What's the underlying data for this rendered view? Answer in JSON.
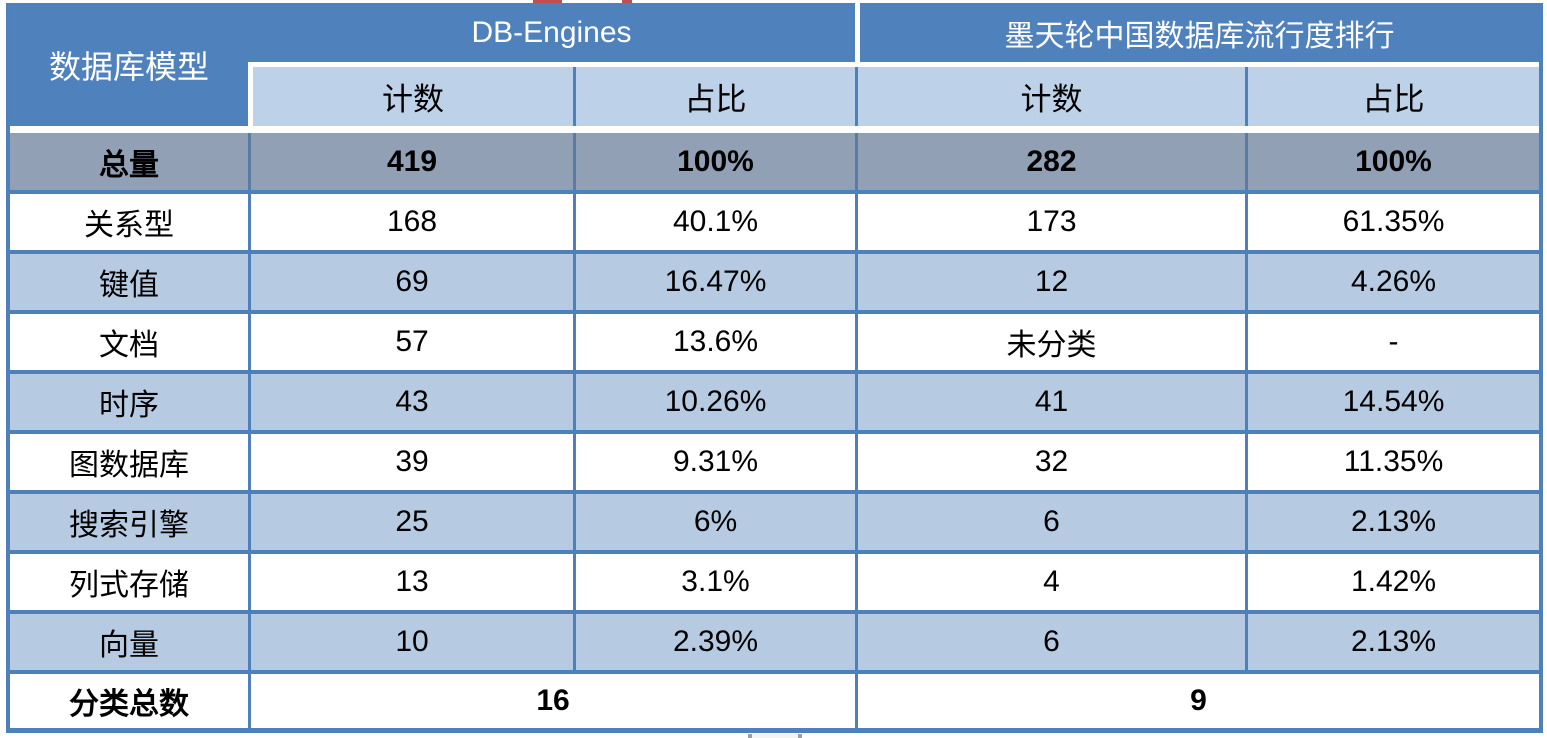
{
  "table": {
    "corner_header": "数据库模型",
    "group_headers": [
      {
        "label": "DB-Engines"
      },
      {
        "label": "墨天轮中国数据库流行度排行"
      }
    ],
    "sub_headers": [
      "计数",
      "占比",
      "计数",
      "占比"
    ],
    "total_row": {
      "label": "总量",
      "db_count": "419",
      "db_pct": "100%",
      "mt_count": "282",
      "mt_pct": "100%"
    },
    "rows": [
      {
        "label": "关系型",
        "db_count": "168",
        "db_pct": "40.1%",
        "mt_count": "173",
        "mt_pct": "61.35%"
      },
      {
        "label": "键值",
        "db_count": "69",
        "db_pct": "16.47%",
        "mt_count": "12",
        "mt_pct": "4.26%"
      },
      {
        "label": "文档",
        "db_count": "57",
        "db_pct": "13.6%",
        "mt_count": "未分类",
        "mt_pct": "-"
      },
      {
        "label": "时序",
        "db_count": "43",
        "db_pct": "10.26%",
        "mt_count": "41",
        "mt_pct": "14.54%"
      },
      {
        "label": "图数据库",
        "db_count": "39",
        "db_pct": "9.31%",
        "mt_count": "32",
        "mt_pct": "11.35%"
      },
      {
        "label": "搜索引擎",
        "db_count": "25",
        "db_pct": "6%",
        "mt_count": "6",
        "mt_pct": "2.13%"
      },
      {
        "label": "列式存储",
        "db_count": "13",
        "db_pct": "3.1%",
        "mt_count": "4",
        "mt_pct": "1.42%"
      },
      {
        "label": "向量",
        "db_count": "10",
        "db_pct": "2.39%",
        "mt_count": "6",
        "mt_pct": "2.13%"
      }
    ],
    "summary_row": {
      "label": "分类总数",
      "db_total": "16",
      "mt_total": "9"
    }
  },
  "colors": {
    "header_blue": "#4F81BD",
    "subheader_blue": "#BDD1E8",
    "band_blue": "#B6CBE2",
    "band_white": "#FFFFFF",
    "total_row_gray": "#91A0B4",
    "border_blue": "#4E81BC",
    "header_text": "#FFFFFF",
    "body_text": "#000000"
  },
  "chart_data": {
    "type": "table",
    "columns": [
      "数据库模型",
      "DB-Engines 计数",
      "DB-Engines 占比",
      "墨天轮中国数据库流行度排行 计数",
      "墨天轮中国数据库流行度排行 占比"
    ],
    "rows": [
      [
        "总量",
        "419",
        "100%",
        "282",
        "100%"
      ],
      [
        "关系型",
        "168",
        "40.1%",
        "173",
        "61.35%"
      ],
      [
        "键值",
        "69",
        "16.47%",
        "12",
        "4.26%"
      ],
      [
        "文档",
        "57",
        "13.6%",
        "未分类",
        "-"
      ],
      [
        "时序",
        "43",
        "10.26%",
        "41",
        "14.54%"
      ],
      [
        "图数据库",
        "39",
        "9.31%",
        "32",
        "11.35%"
      ],
      [
        "搜索引擎",
        "25",
        "6%",
        "6",
        "2.13%"
      ],
      [
        "列式存储",
        "13",
        "3.1%",
        "4",
        "1.42%"
      ],
      [
        "向量",
        "10",
        "2.39%",
        "6",
        "2.13%"
      ],
      [
        "分类总数",
        "16",
        "",
        "9",
        ""
      ]
    ]
  }
}
